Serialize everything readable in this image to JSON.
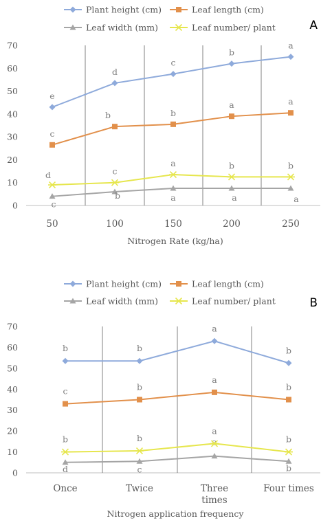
{
  "chart_data": [
    {
      "panel_label": "A",
      "type": "line",
      "categories": [
        "50",
        "100",
        "150",
        "200",
        "250"
      ],
      "xlabel": "Nitrogen Rate (kg/ha)",
      "ylabel": "",
      "ylim": [
        0,
        70
      ],
      "yticks": [
        "0",
        "10",
        "20",
        "30",
        "40",
        "50",
        "60",
        "70"
      ],
      "grid": "vertical lines between categories",
      "legend_position": "top",
      "series": [
        {
          "name": "Plant height (cm)",
          "color": "#8eaadb",
          "marker": "diamond",
          "values": [
            43,
            53.5,
            57.5,
            62,
            65
          ],
          "labels": [
            "e",
            "d",
            "c",
            "b",
            "a"
          ]
        },
        {
          "name": "Leaf length (cm)",
          "color": "#e2904b",
          "marker": "square",
          "values": [
            26.5,
            34.5,
            35.5,
            39,
            40.5
          ],
          "labels": [
            "c",
            "b",
            "b",
            "a",
            "a"
          ]
        },
        {
          "name": "Leaf width (mm)",
          "color": "#a5a5a5",
          "marker": "triangle",
          "values": [
            4,
            6,
            7.5,
            7.5,
            7.5
          ],
          "labels": [
            "c",
            "b",
            "a",
            "a",
            "a"
          ]
        },
        {
          "name": "Leaf number/ plant",
          "color": "#e6e64d",
          "marker": "star",
          "values": [
            9,
            10,
            13.5,
            12.5,
            12.5
          ],
          "labels": [
            "d",
            "c",
            "a",
            "b",
            "b"
          ]
        }
      ]
    },
    {
      "panel_label": "B",
      "type": "line",
      "categories": [
        "Once",
        "Twice",
        "Three times",
        "Four times"
      ],
      "xlabel": "Nitrogen application frequency",
      "ylabel": "",
      "ylim": [
        0,
        70
      ],
      "yticks": [
        "0",
        "10",
        "20",
        "30",
        "40",
        "50",
        "60",
        "70"
      ],
      "grid": "vertical lines between categories",
      "legend_position": "top",
      "series": [
        {
          "name": "Plant height (cm)",
          "color": "#8eaadb",
          "marker": "diamond",
          "values": [
            53.5,
            53.5,
            63,
            52.5
          ],
          "labels": [
            "b",
            "b",
            "a",
            "b"
          ]
        },
        {
          "name": "Leaf length (cm)",
          "color": "#e2904b",
          "marker": "square",
          "values": [
            33,
            35,
            38.5,
            35
          ],
          "labels": [
            "c",
            "b",
            "a",
            "b"
          ]
        },
        {
          "name": "Leaf width (mm)",
          "color": "#a5a5a5",
          "marker": "triangle",
          "values": [
            5,
            5.5,
            8,
            5.5
          ],
          "labels": [
            "d",
            "c",
            "a",
            "b"
          ]
        },
        {
          "name": "Leaf number/ plant",
          "color": "#e6e64d",
          "marker": "star",
          "values": [
            10,
            10.5,
            14,
            10
          ],
          "labels": [
            "b",
            "b",
            "a",
            "b"
          ]
        }
      ]
    }
  ]
}
